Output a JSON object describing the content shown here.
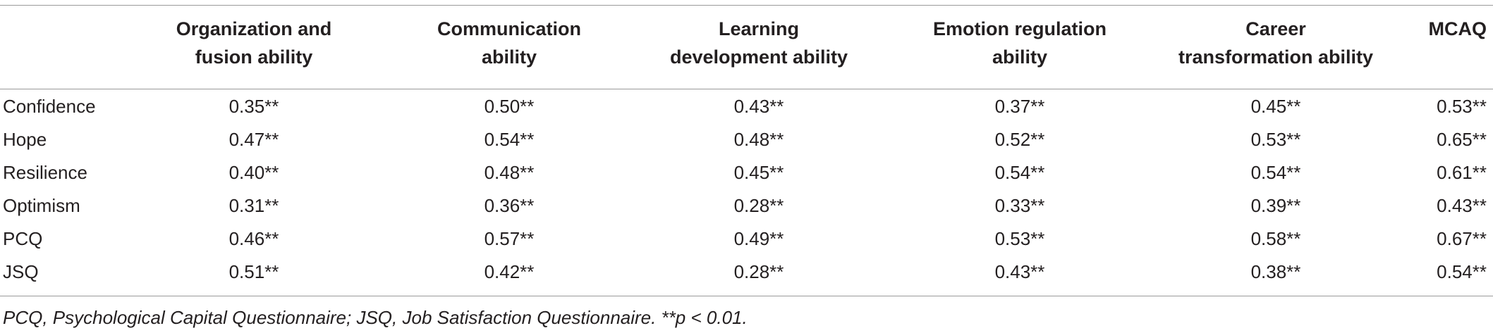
{
  "table": {
    "header": [
      [
        "Organization and",
        "fusion ability"
      ],
      [
        "Communication",
        "ability"
      ],
      [
        "Learning",
        "development ability"
      ],
      [
        "Emotion regulation",
        "ability"
      ],
      [
        "Career",
        "transformation ability"
      ],
      [
        "MCAQ"
      ]
    ],
    "rows": [
      {
        "label": "Confidence",
        "values": [
          "0.35**",
          "0.50**",
          "0.43**",
          "0.37**",
          "0.45**",
          "0.53**"
        ]
      },
      {
        "label": "Hope",
        "values": [
          "0.47**",
          "0.54**",
          "0.48**",
          "0.52**",
          "0.53**",
          "0.65**"
        ]
      },
      {
        "label": "Resilience",
        "values": [
          "0.40**",
          "0.48**",
          "0.45**",
          "0.54**",
          "0.54**",
          "0.61**"
        ]
      },
      {
        "label": "Optimism",
        "values": [
          "0.31**",
          "0.36**",
          "0.28**",
          "0.33**",
          "0.39**",
          "0.43**"
        ]
      },
      {
        "label": "PCQ",
        "values": [
          "0.46**",
          "0.57**",
          "0.49**",
          "0.53**",
          "0.58**",
          "0.67**"
        ]
      },
      {
        "label": "JSQ",
        "values": [
          "0.51**",
          "0.42**",
          "0.28**",
          "0.43**",
          "0.38**",
          "0.54**"
        ]
      }
    ],
    "footnote": "PCQ, Psychological Capital Questionnaire; JSQ, Job Satisfaction Questionnaire. **p < 0.01."
  }
}
